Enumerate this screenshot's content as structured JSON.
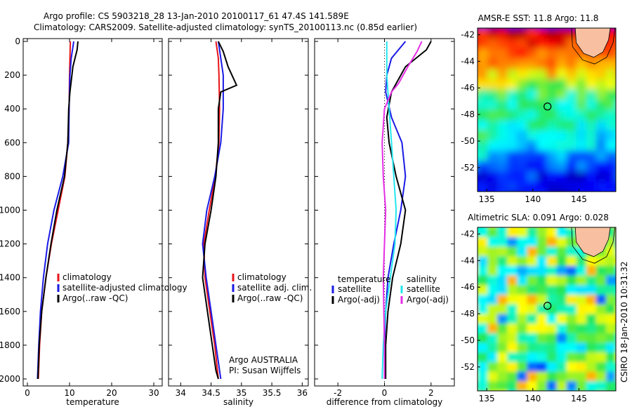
{
  "header": {
    "line1": "Argo profile: CS 5903218_28 13-Jan-2010 20100117_61 47.4S 141.589E",
    "line2": "Climatology: CARS2009. Satellite-adjusted climatology: synTS_20100113.nc (0.85d earlier)"
  },
  "footer": {
    "credit": "CSIRO 18-Jan-2010 10:31:32",
    "argo_org": "Argo AUSTRALIA",
    "pi": "PI: Susan Wijffels"
  },
  "colors": {
    "climatology": "#e8141a",
    "satellite": "#1a1ae6",
    "argo": "#000000",
    "sat_diff": "#25e6ee",
    "argo_diff": "#e62ee6",
    "land": "#f8c0a0"
  },
  "chart_data": [
    {
      "type": "line",
      "name": "temperature-panel",
      "xlabel": "temperature",
      "ylabel": "",
      "xlim": [
        -1,
        32
      ],
      "ylim": [
        2000,
        0
      ],
      "yinvert": true,
      "xticks": [
        "0",
        "10",
        "20",
        "30"
      ],
      "xtick_values": [
        0,
        10,
        20,
        30
      ],
      "yticks": [
        "0",
        "200",
        "400",
        "600",
        "800",
        "1000",
        "1200",
        "1400",
        "1600",
        "1800",
        "2000"
      ],
      "ytick_values": [
        0,
        200,
        400,
        600,
        800,
        1000,
        1200,
        1400,
        1600,
        1800,
        2000
      ],
      "legend": [
        "climatology",
        "satellite-adjusted climatology",
        "Argo(..raw -QC)"
      ],
      "legend_placement": "lower-right",
      "series": [
        {
          "name": "climatology",
          "color": "#e8141a",
          "x": [
            10.2,
            10.1,
            10.0,
            9.9,
            9.6,
            8.9,
            7.3,
            5.7,
            4.4,
            3.4,
            2.9,
            2.6
          ],
          "y": [
            0,
            100,
            200,
            400,
            600,
            800,
            1000,
            1200,
            1400,
            1600,
            1800,
            2000
          ]
        },
        {
          "name": "satellite-adjusted climatology",
          "color": "#1a1ae6",
          "x": [
            11.0,
            10.4,
            10.1,
            9.9,
            9.8,
            8.4,
            6.3,
            4.8,
            3.8,
            3.1,
            2.7,
            2.4
          ],
          "y": [
            0,
            100,
            200,
            400,
            600,
            800,
            1000,
            1200,
            1400,
            1600,
            1800,
            2000
          ]
        },
        {
          "name": "Argo(..raw -QC)",
          "color": "#000000",
          "x": [
            12.0,
            11.8,
            10.8,
            10.1,
            9.8,
            9.6,
            8.8,
            7.0,
            5.6,
            4.4,
            3.4,
            2.8,
            2.5
          ],
          "y": [
            0,
            50,
            150,
            300,
            400,
            600,
            800,
            1000,
            1200,
            1400,
            1600,
            1800,
            2000
          ]
        }
      ]
    },
    {
      "type": "line",
      "name": "salinity-panel",
      "xlabel": "salinity",
      "ylabel": "",
      "xlim": [
        33.8,
        36.1
      ],
      "ylim": [
        2000,
        0
      ],
      "yinvert": true,
      "xticks": [
        "34",
        "34.5",
        "35",
        "35.5",
        "36"
      ],
      "xtick_values": [
        34,
        34.5,
        35,
        35.5,
        36
      ],
      "legend": [
        "climatology",
        "satellite adj. clim.",
        "Argo(..raw -QC)"
      ],
      "legend_placement": "lower-right",
      "series": [
        {
          "name": "climatology",
          "color": "#e8141a",
          "x": [
            34.58,
            34.62,
            34.63,
            34.64,
            34.63,
            34.57,
            34.47,
            34.38,
            34.4,
            34.48,
            34.56,
            34.62
          ],
          "y": [
            0,
            100,
            200,
            400,
            600,
            800,
            1000,
            1200,
            1400,
            1600,
            1800,
            2000
          ]
        },
        {
          "name": "satellite adj. clim.",
          "color": "#1a1ae6",
          "x": [
            34.62,
            34.66,
            34.7,
            34.7,
            34.66,
            34.56,
            34.43,
            34.36,
            34.42,
            34.5,
            34.58,
            34.66
          ],
          "y": [
            0,
            100,
            200,
            400,
            600,
            800,
            1000,
            1200,
            1400,
            1600,
            1800,
            2000
          ]
        },
        {
          "name": "Argo(..raw -QC)",
          "color": "#000000",
          "x": [
            34.62,
            34.7,
            34.78,
            34.92,
            34.66,
            34.62,
            34.62,
            34.58,
            34.5,
            34.4,
            34.36,
            34.44,
            34.52,
            34.58,
            34.62
          ],
          "y": [
            0,
            60,
            150,
            260,
            300,
            400,
            600,
            800,
            1000,
            1200,
            1400,
            1600,
            1800,
            1950,
            2000
          ]
        }
      ]
    },
    {
      "type": "line",
      "name": "difference-panel",
      "xlabel": "difference from climatology",
      "ylabel": "",
      "xlim": [
        -3.0,
        3.0
      ],
      "ylim": [
        2000,
        0
      ],
      "yinvert": true,
      "xticks": [
        "-2",
        "0",
        "2"
      ],
      "xtick_values": [
        -2,
        0,
        2
      ],
      "zero_line": true,
      "legend_groups": [
        {
          "title": "temperature",
          "items": [
            "satellite",
            "Argo(-adj)"
          ]
        },
        {
          "title": "salinity",
          "items": [
            "satellite",
            "Argo(-adj)"
          ]
        }
      ],
      "legend_placement": "lower-center",
      "series": [
        {
          "name": "satellite",
          "group": "temperature",
          "color": "#1a1ae6",
          "x": [
            0.9,
            0.3,
            0.1,
            0.05,
            0.3,
            0.75,
            0.9,
            0.7,
            0.4,
            0.15,
            0.05,
            0.0,
            0.0
          ],
          "y": [
            0,
            100,
            200,
            300,
            450,
            600,
            800,
            1000,
            1200,
            1400,
            1600,
            1800,
            2000
          ]
        },
        {
          "name": "Argo(-adj)",
          "group": "temperature",
          "color": "#000000",
          "x": [
            2.0,
            1.8,
            0.9,
            0.3,
            0.1,
            0.2,
            0.5,
            0.9,
            0.7,
            0.35,
            0.15,
            0.05,
            0.05
          ],
          "y": [
            0,
            50,
            150,
            300,
            450,
            600,
            800,
            1000,
            1200,
            1400,
            1600,
            1800,
            2000
          ]
        },
        {
          "name": "satellite",
          "group": "salinity",
          "color": "#25e6ee",
          "x": [
            0.1,
            0.1,
            0.2,
            0.3,
            0.4,
            0.5,
            0.45,
            0.25,
            0.05,
            -0.05,
            -0.1
          ],
          "y": [
            0,
            200,
            400,
            600,
            800,
            1000,
            1200,
            1400,
            1600,
            1800,
            2000
          ]
        },
        {
          "name": "Argo(-adj)",
          "group": "salinity",
          "color": "#e62ee6",
          "x": [
            1.6,
            1.4,
            1.0,
            0.6,
            0.3,
            0.0,
            -0.1,
            -0.05,
            0.05,
            0.0,
            -0.05,
            0.0,
            0.0
          ],
          "y": [
            0,
            60,
            150,
            250,
            300,
            400,
            600,
            800,
            1000,
            1200,
            1400,
            1800,
            2000
          ]
        }
      ]
    },
    {
      "type": "heatmap",
      "name": "sst-map",
      "title": "AMSR-E SST: 11.8 Argo: 11.8",
      "xlim": [
        134,
        149
      ],
      "ylim": [
        -53.8,
        -41.5
      ],
      "xticks": [
        "135",
        "140",
        "145"
      ],
      "xtick_values": [
        135,
        140,
        145
      ],
      "yticks": [
        "-42",
        "-44",
        "-46",
        "-48",
        "-50",
        "-52"
      ],
      "ytick_values": [
        -42,
        -44,
        -46,
        -48,
        -50,
        -52
      ],
      "argo_position": {
        "lon": 141.589,
        "lat": -47.4
      },
      "colormap": "jet",
      "field_profile": [
        {
          "lat": -41.5,
          "v": 0.93
        },
        {
          "lat": -43.5,
          "v": 0.78
        },
        {
          "lat": -45.5,
          "v": 0.62
        },
        {
          "lat": -46.5,
          "v": 0.48
        },
        {
          "lat": -48.5,
          "v": 0.42
        },
        {
          "lat": -50.5,
          "v": 0.32
        },
        {
          "lat": -51.8,
          "v": 0.2
        },
        {
          "lat": -53.8,
          "v": 0.08
        }
      ]
    },
    {
      "type": "heatmap",
      "name": "sla-map",
      "title": "Altimetric SLA: 0.091 Argo: 0.028",
      "xlim": [
        134,
        149
      ],
      "ylim": [
        -53.8,
        -41.5
      ],
      "xticks": [
        "135",
        "140",
        "145"
      ],
      "xtick_values": [
        135,
        140,
        145
      ],
      "yticks": [
        "-42",
        "-44",
        "-46",
        "-48",
        "-50",
        "-52"
      ],
      "ytick_values": [
        -42,
        -44,
        -46,
        -48,
        -50,
        -52
      ],
      "argo_position": {
        "lon": 141.589,
        "lat": -47.4
      },
      "colormap": "jet",
      "field_profile": [
        {
          "lat": -41.5,
          "v": 0.5
        },
        {
          "lat": -53.8,
          "v": 0.5
        }
      ]
    }
  ]
}
